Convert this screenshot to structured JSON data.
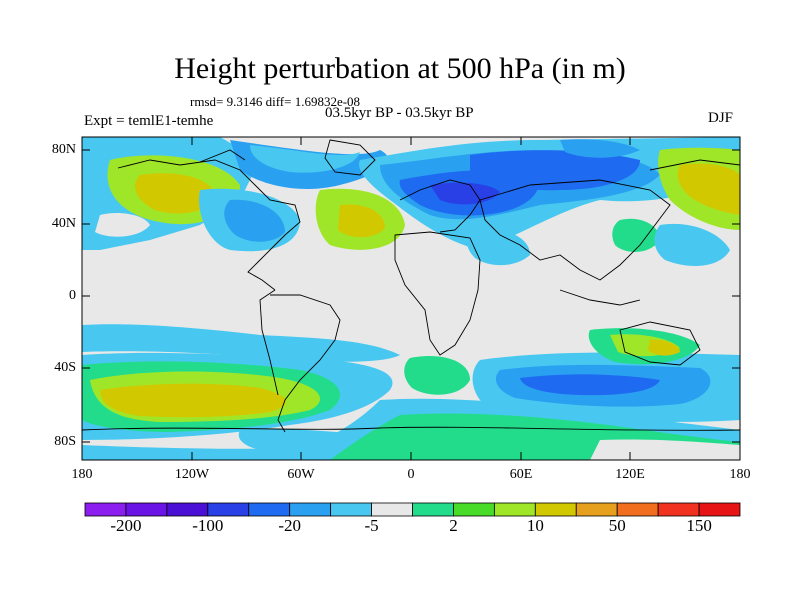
{
  "title": "Height perturbation at 500 hPa (in m)",
  "stats": "rmsd= 9.3146 diff= 1.69832e-08",
  "period": "03.5kyr BP - 03.5kyr BP",
  "experiment": "Expt = temlE1-temhe",
  "season": "DJF",
  "lat_labels": [
    "80N",
    "40N",
    "0",
    "40S",
    "80S"
  ],
  "lon_labels": [
    "180",
    "120W",
    "60W",
    "0",
    "60E",
    "120E",
    "180"
  ],
  "colorbar": {
    "colors": [
      "#8c1ef0",
      "#6a14e6",
      "#4a10d6",
      "#2840e6",
      "#1e6af0",
      "#2aa0f0",
      "#48c8f0",
      "#e8e8e8",
      "#22dc8c",
      "#48dc28",
      "#a0e628",
      "#d2c800",
      "#e6a01e",
      "#f06e1e",
      "#f0321e",
      "#e61414"
    ],
    "labels": [
      "-200",
      "-100",
      "-20",
      "-5",
      "2",
      "10",
      "50",
      "150"
    ]
  }
}
